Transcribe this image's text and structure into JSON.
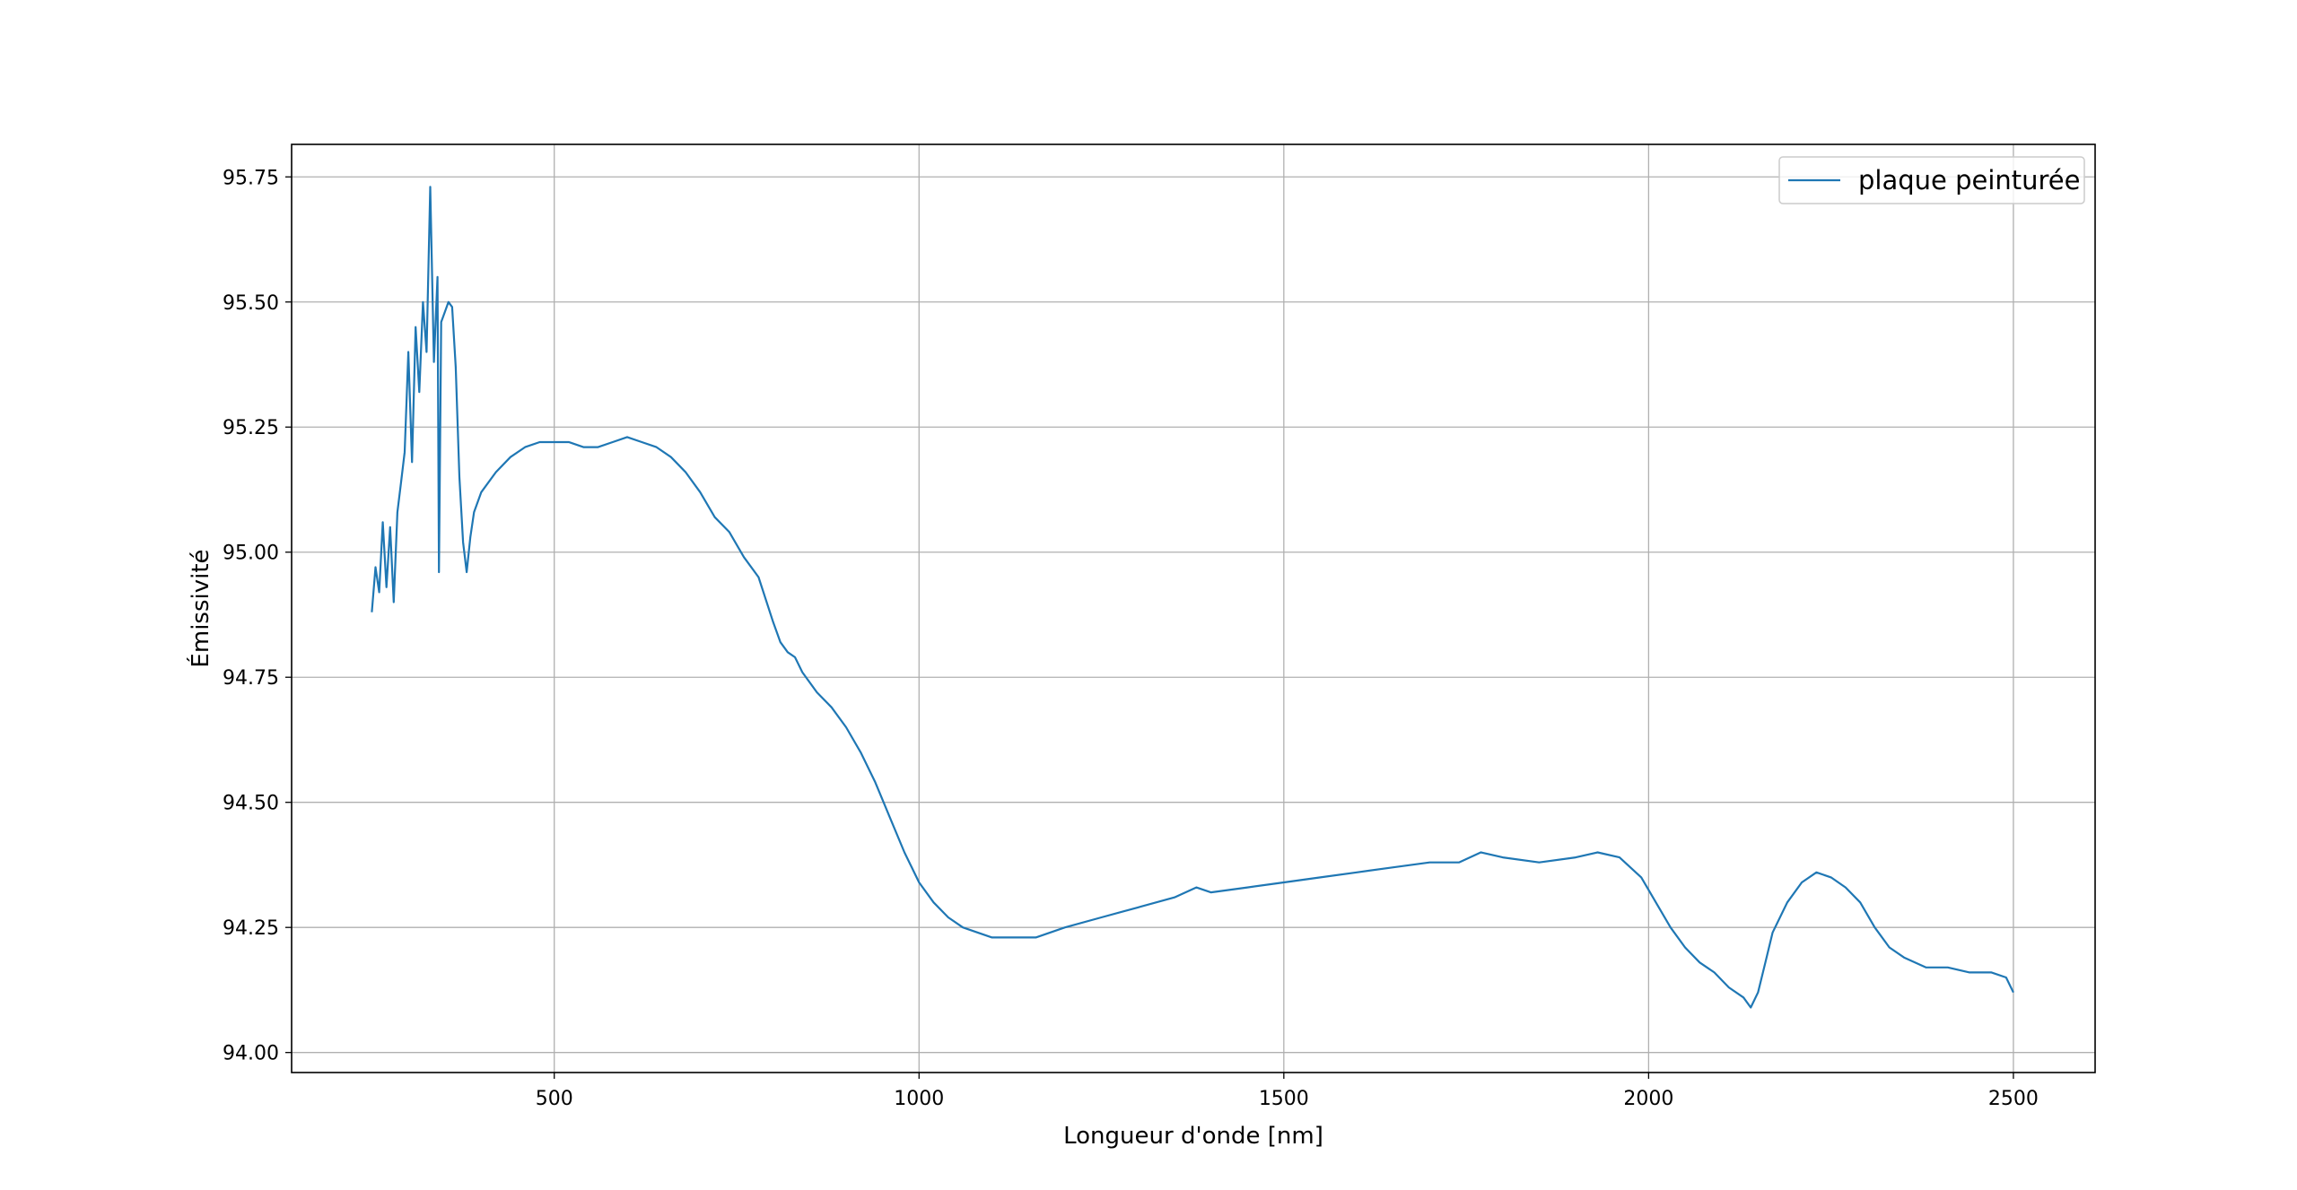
{
  "chart_data": {
    "type": "line",
    "xlabel": "Longueur d'onde [nm]",
    "ylabel": "Émissivité",
    "xlim": [
      140,
      2612
    ],
    "ylim": [
      93.96,
      95.815
    ],
    "x_ticks": [
      500,
      1000,
      1500,
      2000,
      2500
    ],
    "y_ticks": [
      94.0,
      94.25,
      94.5,
      94.75,
      95.0,
      95.25,
      95.5,
      95.75
    ],
    "x_tick_labels": [
      "500",
      "1000",
      "1500",
      "2000",
      "2500"
    ],
    "y_tick_labels": [
      "94.00",
      "94.25",
      "94.50",
      "94.75",
      "95.00",
      "95.25",
      "95.50",
      "95.75"
    ],
    "grid": true,
    "legend_position": "top-right",
    "colors": {
      "series": "#1f77b4",
      "grid": "#b0b0b0",
      "axes": "#000000"
    },
    "series": [
      {
        "name": "plaque peinturée",
        "x": [
          250,
          255,
          260,
          265,
          270,
          275,
          280,
          285,
          290,
          295,
          300,
          305,
          310,
          315,
          320,
          325,
          330,
          335,
          340,
          342,
          345,
          350,
          355,
          360,
          365,
          370,
          375,
          380,
          385,
          390,
          400,
          420,
          440,
          460,
          480,
          500,
          520,
          540,
          560,
          580,
          600,
          620,
          640,
          660,
          680,
          700,
          720,
          740,
          760,
          780,
          800,
          810,
          820,
          830,
          840,
          860,
          880,
          900,
          920,
          940,
          960,
          980,
          1000,
          1020,
          1040,
          1060,
          1080,
          1100,
          1130,
          1160,
          1200,
          1250,
          1300,
          1350,
          1380,
          1400,
          1450,
          1500,
          1550,
          1600,
          1650,
          1700,
          1740,
          1770,
          1800,
          1850,
          1900,
          1930,
          1960,
          1990,
          2010,
          2030,
          2050,
          2070,
          2090,
          2110,
          2130,
          2140,
          2150,
          2160,
          2170,
          2190,
          2210,
          2230,
          2250,
          2270,
          2290,
          2310,
          2330,
          2350,
          2380,
          2410,
          2440,
          2470,
          2490,
          2500
        ],
        "values": [
          94.88,
          94.97,
          94.92,
          95.06,
          94.93,
          95.05,
          94.9,
          95.08,
          95.14,
          95.2,
          95.4,
          95.18,
          95.45,
          95.32,
          95.5,
          95.4,
          95.73,
          95.38,
          95.55,
          94.96,
          95.46,
          95.48,
          95.5,
          95.49,
          95.37,
          95.15,
          95.02,
          94.96,
          95.03,
          95.08,
          95.12,
          95.16,
          95.19,
          95.21,
          95.22,
          95.22,
          95.22,
          95.21,
          95.21,
          95.22,
          95.23,
          95.22,
          95.21,
          95.19,
          95.16,
          95.12,
          95.07,
          95.04,
          94.99,
          94.95,
          94.86,
          94.82,
          94.8,
          94.79,
          94.76,
          94.72,
          94.69,
          94.65,
          94.6,
          94.54,
          94.47,
          94.4,
          94.34,
          94.3,
          94.27,
          94.25,
          94.24,
          94.23,
          94.23,
          94.23,
          94.25,
          94.27,
          94.29,
          94.31,
          94.33,
          94.32,
          94.33,
          94.34,
          94.35,
          94.36,
          94.37,
          94.38,
          94.38,
          94.4,
          94.39,
          94.38,
          94.39,
          94.4,
          94.39,
          94.35,
          94.3,
          94.25,
          94.21,
          94.18,
          94.16,
          94.13,
          94.11,
          94.09,
          94.12,
          94.18,
          94.24,
          94.3,
          94.34,
          94.36,
          94.35,
          94.33,
          94.3,
          94.25,
          94.21,
          94.19,
          94.17,
          94.17,
          94.16,
          94.16,
          94.15,
          94.12
        ]
      }
    ]
  }
}
